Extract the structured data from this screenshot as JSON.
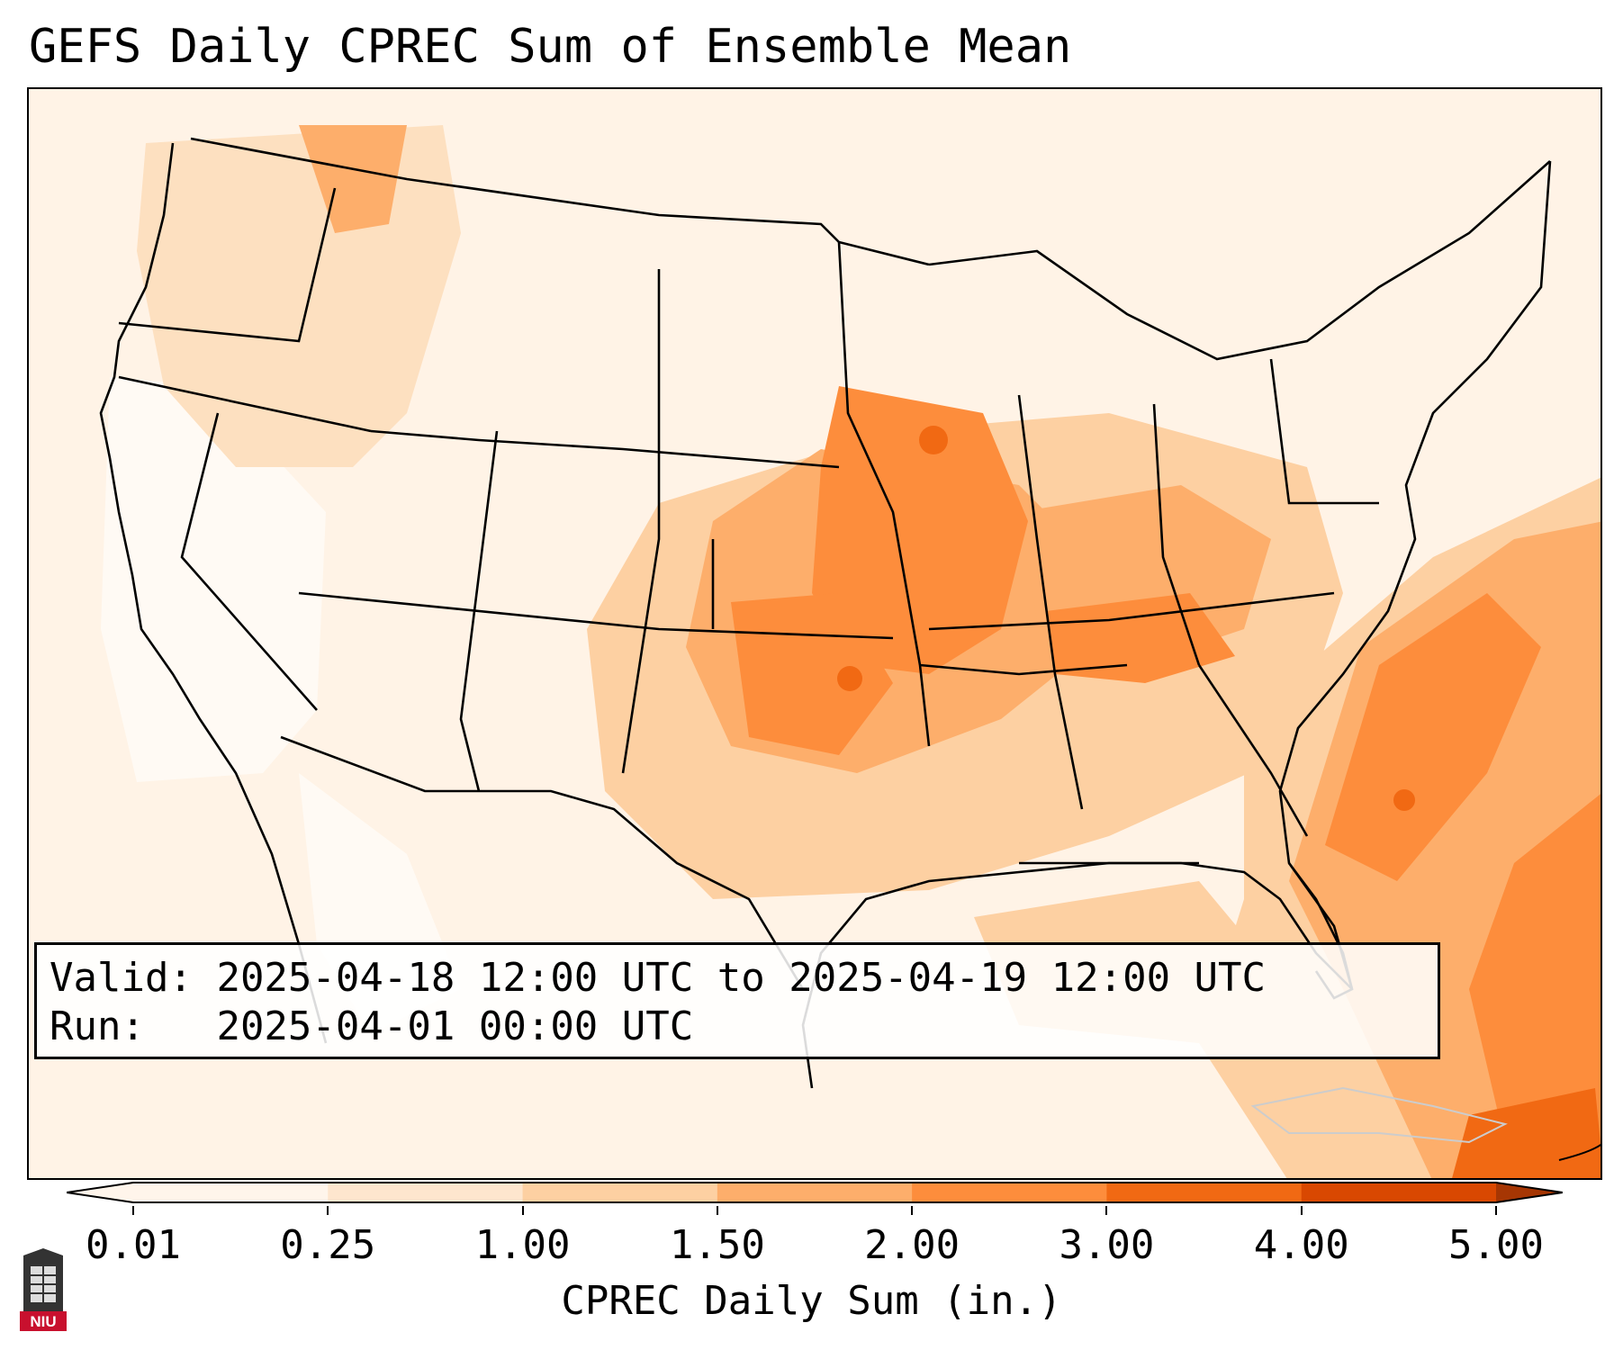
{
  "title": "GEFS Daily CPREC Sum of Ensemble Mean",
  "info": {
    "valid_label": "Valid:",
    "valid_value": "2025-04-18 12:00 UTC to 2025-04-19 12:00 UTC",
    "run_label": "Run:",
    "run_value": "2025-04-01 00:00 UTC"
  },
  "colorbar": {
    "label": "CPREC Daily Sum (in.)",
    "ticks": [
      "0.01",
      "0.25",
      "1.00",
      "1.50",
      "2.00",
      "3.00",
      "4.00",
      "5.00"
    ],
    "colors": [
      "#fff5eb",
      "#fee6ce",
      "#fdd0a2",
      "#fdae6b",
      "#fd8d3c",
      "#f16913",
      "#d94801",
      "#a63603"
    ]
  },
  "logo": {
    "text": "NIU",
    "color": "#c8102e"
  }
}
